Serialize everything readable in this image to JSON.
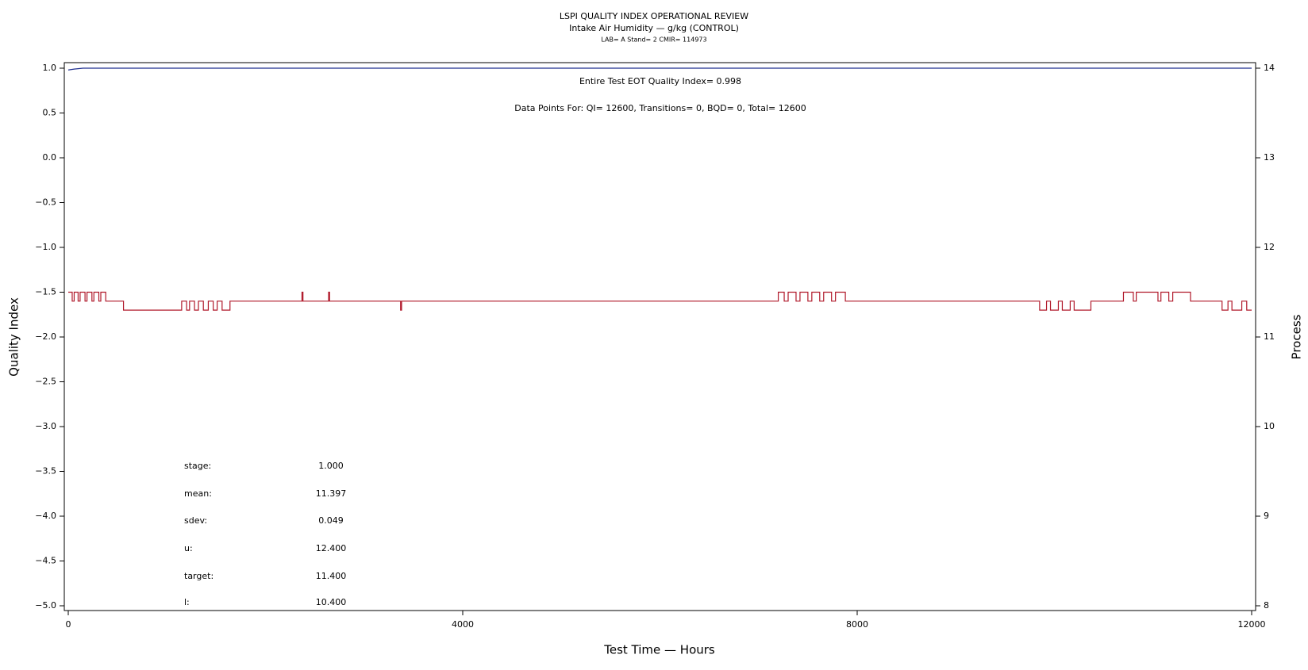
{
  "chart_data": {
    "type": "line",
    "title": "LSPI QUALITY INDEX OPERATIONAL REVIEW",
    "subtitle": "Intake Air Humidity — g/kg (CONTROL)",
    "caption": "LAB= A Stand= 2 CMIR= 114973",
    "x_label": "Test Time — Hours",
    "y_label": "Quality Index",
    "y2_label": "Process",
    "xlim": [
      0,
      12000
    ],
    "xticks": [
      0,
      4000,
      8000,
      12000
    ],
    "ylim": [
      -5,
      1
    ],
    "yticks": [
      {
        "value": 1,
        "label": "1.0"
      },
      0.5,
      {
        "value": 0,
        "label": "0.0"
      },
      {
        "value": -0.5,
        "label": "−0.5"
      },
      {
        "value": -1,
        "label": "−1.0"
      },
      {
        "value": -1.5,
        "label": "−1.5"
      },
      {
        "value": -2,
        "label": "−2.0"
      },
      {
        "value": -2.5,
        "label": "−2.5"
      },
      {
        "value": -3,
        "label": "−3.0"
      },
      {
        "value": -3.5,
        "label": "−3.5"
      },
      {
        "value": -4,
        "label": "−4.0"
      },
      {
        "value": -4.5,
        "label": "−4.5"
      },
      {
        "value": -5,
        "label": "−5.0"
      }
    ],
    "y2lim": [
      8,
      14
    ],
    "y2ticks": [
      8,
      9,
      10,
      11,
      12,
      13,
      14
    ],
    "annotations": [
      "Entire Test EOT Quality Index=   0.998",
      "Data Points For: QI= 12600, Transitions=     0, BQD=     0, Total= 12600"
    ],
    "stats": [
      {
        "label": "stage:",
        "value": "1.000"
      },
      {
        "label": "mean:",
        "value": "11.397"
      },
      {
        "label": "sdev:",
        "value": "0.049"
      },
      {
        "label": "u:",
        "value": "12.400"
      },
      {
        "label": "target:",
        "value": "11.400"
      },
      {
        "label": "l:",
        "value": "10.400"
      }
    ],
    "series": [
      {
        "color": "#1f2f8f",
        "x": [
          0,
          60,
          150,
          12000
        ],
        "values": [
          0.98,
          0.99,
          1.0,
          1.0
        ]
      },
      {
        "color": "#b0182a",
        "axis": "y2",
        "x": [
          0,
          40,
          40,
          60,
          60,
          100,
          100,
          120,
          120,
          170,
          170,
          190,
          190,
          240,
          240,
          260,
          260,
          310,
          310,
          330,
          330,
          380,
          380,
          560,
          560,
          1150,
          1150,
          1200,
          1200,
          1230,
          1230,
          1280,
          1280,
          1320,
          1320,
          1370,
          1370,
          1420,
          1420,
          1470,
          1470,
          1510,
          1510,
          1560,
          1560,
          1640,
          1640,
          2370,
          2370,
          2380,
          2380,
          2640,
          2640,
          2650,
          2650,
          3370,
          3370,
          3380,
          3380,
          7200,
          7200,
          7260,
          7260,
          7300,
          7300,
          7380,
          7380,
          7420,
          7420,
          7500,
          7500,
          7540,
          7540,
          7620,
          7620,
          7660,
          7660,
          7740,
          7740,
          7780,
          7780,
          7880,
          7880,
          9850,
          9850,
          9920,
          9920,
          9960,
          9960,
          10040,
          10040,
          10080,
          10080,
          10160,
          10160,
          10200,
          10200,
          10370,
          10370,
          10700,
          10700,
          10800,
          10800,
          10830,
          10830,
          11050,
          11050,
          11080,
          11080,
          11160,
          11160,
          11200,
          11200,
          11380,
          11380,
          11700,
          11700,
          11760,
          11760,
          11800,
          11800,
          11900,
          11900,
          11950,
          11950,
          12000
        ],
        "values": [
          11.5,
          11.5,
          11.4,
          11.4,
          11.5,
          11.5,
          11.4,
          11.4,
          11.5,
          11.5,
          11.4,
          11.4,
          11.5,
          11.5,
          11.4,
          11.4,
          11.5,
          11.5,
          11.4,
          11.4,
          11.5,
          11.5,
          11.4,
          11.4,
          11.3,
          11.3,
          11.4,
          11.4,
          11.3,
          11.3,
          11.4,
          11.4,
          11.3,
          11.3,
          11.4,
          11.4,
          11.3,
          11.3,
          11.4,
          11.4,
          11.3,
          11.3,
          11.4,
          11.4,
          11.3,
          11.3,
          11.4,
          11.4,
          11.5,
          11.5,
          11.4,
          11.4,
          11.5,
          11.5,
          11.4,
          11.4,
          11.3,
          11.3,
          11.4,
          11.4,
          11.5,
          11.5,
          11.4,
          11.4,
          11.5,
          11.5,
          11.4,
          11.4,
          11.5,
          11.5,
          11.4,
          11.4,
          11.5,
          11.5,
          11.4,
          11.4,
          11.5,
          11.5,
          11.4,
          11.4,
          11.5,
          11.5,
          11.4,
          11.4,
          11.3,
          11.3,
          11.4,
          11.4,
          11.3,
          11.3,
          11.4,
          11.4,
          11.3,
          11.3,
          11.4,
          11.4,
          11.3,
          11.3,
          11.4,
          11.4,
          11.5,
          11.5,
          11.4,
          11.4,
          11.5,
          11.5,
          11.4,
          11.4,
          11.5,
          11.5,
          11.4,
          11.4,
          11.5,
          11.5,
          11.4,
          11.4,
          11.3,
          11.3,
          11.4,
          11.4,
          11.3,
          11.3,
          11.4,
          11.4,
          11.3,
          11.3
        ]
      }
    ]
  }
}
